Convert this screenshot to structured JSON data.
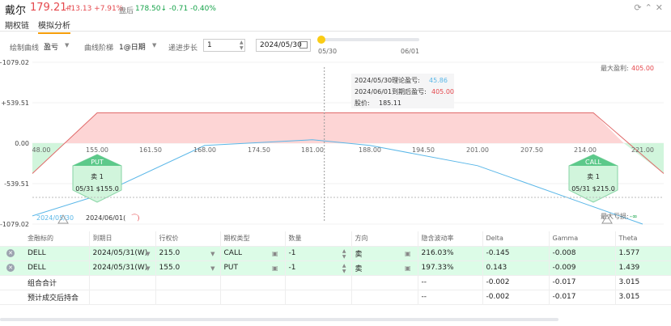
{
  "header": {
    "stock_name": "戴尔",
    "price": "179.21",
    "price_arrow": "↑",
    "change": "+13.13 +7.91%",
    "after_hours_label": "盘后",
    "after_hours_price": "178.50",
    "after_hours_arrow": "↓",
    "after_hours_change": "-0.71 -0.40%",
    "icons": [
      "refresh-icon",
      "collapse-icon",
      "close-icon"
    ]
  },
  "tabs": [
    {
      "label": "期权链",
      "active": false
    },
    {
      "label": "模拟分析",
      "active": true
    }
  ],
  "controls": {
    "curve_label": "绘制曲线",
    "curve_value": "盈亏",
    "ladder_label": "曲线阶梯",
    "ladder_value": "1@日期",
    "step_label": "递进步长",
    "step_value": "1",
    "date_value": "2024/05/30",
    "slider_start": "05/30",
    "slider_end": "06/01",
    "slider_level": 0
  },
  "chart_data": {
    "type": "line",
    "y_ticks": [
      "+1079.02",
      "+539.51",
      "0.00",
      "-539.51",
      "-1079.02"
    ],
    "ylim": [
      -1079.02,
      1079.02
    ],
    "x_ticks": [
      "48.00",
      "155.00",
      "161.50",
      "168.00",
      "174.50",
      "181.00",
      "188.00",
      "194.50",
      "201.00",
      "207.50",
      "214.00",
      "221.00"
    ],
    "expiry_series": {
      "name": "2024/06/01",
      "points": [
        [
          147.6,
          -405
        ],
        [
          155,
          405
        ],
        [
          215,
          405
        ],
        [
          222.4,
          -405
        ]
      ]
    },
    "theoretical_series": {
      "name": "2024/05/30",
      "points": [
        [
          147.6,
          -970
        ],
        [
          155,
          -700
        ],
        [
          168,
          -30
        ],
        [
          181,
          45.86
        ],
        [
          188,
          -30
        ],
        [
          201,
          -300
        ],
        [
          214,
          -810
        ],
        [
          221,
          -1079
        ]
      ]
    },
    "stock_price": 185.11,
    "max_profit_label": "最大盈利:",
    "max_profit": "405.00",
    "max_loss_label": "最大亏损:",
    "max_loss": "-∞",
    "tooltip": {
      "theo_label": "2024/05/30理论盈亏:",
      "theo_value": "45.86",
      "expiry_label": "2024/06/01到期后盈亏:",
      "expiry_value": "405.00",
      "price_label": "股价:",
      "price_value": "185.11"
    },
    "put_marker": {
      "title": "PUT",
      "line1": "卖 1",
      "line2": "05/31 $155.0"
    },
    "call_marker": {
      "title": "CALL",
      "line1": "卖 1",
      "line2": "05/31 $215.0"
    },
    "legend_theo": "2024/05/30",
    "legend_expiry": "2024/06/01("
  },
  "table": {
    "headers": [
      "金融标的",
      "到期日",
      "行权价",
      "期权类型",
      "数量",
      "方向",
      "隐含波动率",
      "Delta",
      "Gamma",
      "Theta"
    ],
    "rows": [
      {
        "symbol": "DELL",
        "expiry": "2024/05/31(W)",
        "strike": "215.0",
        "type": "CALL",
        "qty": "-1",
        "side": "卖",
        "iv": "216.03%",
        "delta": "-0.145",
        "gamma": "-0.008",
        "theta": "1.577"
      },
      {
        "symbol": "DELL",
        "expiry": "2024/05/31(W)",
        "strike": "155.0",
        "type": "PUT",
        "qty": "-1",
        "side": "卖",
        "iv": "197.33%",
        "delta": "0.143",
        "gamma": "-0.009",
        "theta": "1.439"
      }
    ],
    "summary": [
      {
        "label": "组合合计",
        "iv": "--",
        "delta": "-0.002",
        "gamma": "-0.017",
        "theta": "3.015"
      },
      {
        "label": "预计成交后持合",
        "iv": "--",
        "delta": "-0.002",
        "gamma": "-0.017",
        "theta": "3.015"
      }
    ]
  },
  "colors": {
    "up": "#e5484d",
    "down": "#16a34a",
    "profit_fill": "#fdd5d5",
    "loss_fill": "#d1f5dc",
    "theo_line": "#5ab7e8",
    "expiry_loss_line": "#2fa85a",
    "expiry_profit_line": "#e06a6a",
    "accent": "#f59e0b"
  }
}
